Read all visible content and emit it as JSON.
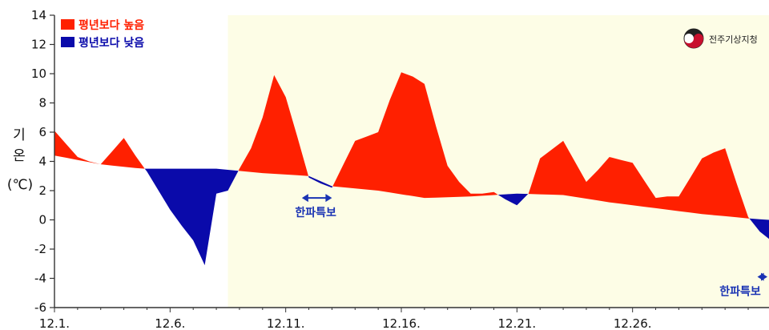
{
  "chart_data": {
    "type": "area",
    "title": "",
    "xlabel": "",
    "ylabel_lines": [
      "기",
      "온",
      "(℃)"
    ],
    "ylim": [
      -6,
      14
    ],
    "yticks": [
      -6,
      -4,
      -2,
      0,
      2,
      4,
      6,
      8,
      10,
      12,
      14
    ],
    "x_start_day": 1,
    "x_end_day": 31.9,
    "xticks": [
      {
        "day": 1,
        "label": "12.1."
      },
      {
        "day": 6,
        "label": "12.6."
      },
      {
        "day": 11,
        "label": "12.11."
      },
      {
        "day": 16,
        "label": "12.16."
      },
      {
        "day": 21,
        "label": "12.21."
      },
      {
        "day": 26,
        "label": "12.26."
      }
    ],
    "highlight_from_day": 8.5,
    "legend": [
      {
        "label": "평년보다 높음",
        "color": "#ff2000"
      },
      {
        "label": "평년보다 낮음",
        "color": "#0a0aaa"
      }
    ],
    "legend_position": "top-left",
    "colors": {
      "above": "#ff2000",
      "below": "#0a0aaa",
      "highlight_bg": "#fdfde6",
      "axis": "#333333",
      "annotation": "#1a33b3"
    },
    "series": [
      {
        "name": "평년보다 높음",
        "role": "observed",
        "x": [
          1,
          1.5,
          2,
          2.5,
          3,
          3.5,
          4,
          4.5,
          5,
          5.5,
          6,
          6.5,
          7,
          7.5,
          8,
          8.5,
          9,
          9.5,
          10,
          10.5,
          11,
          11.5,
          12,
          12.5,
          13,
          13.5,
          14,
          14.5,
          15,
          15.5,
          16,
          16.5,
          17,
          17.5,
          18,
          18.5,
          19,
          19.5,
          20,
          20.5,
          21,
          21.5,
          22,
          22.5,
          23,
          23.5,
          24,
          24.5,
          25,
          25.5,
          26,
          26.5,
          27,
          27.5,
          28,
          28.5,
          29,
          29.5,
          30,
          30.5,
          31,
          31.5,
          31.9
        ],
        "values": [
          6.1,
          5.2,
          4.3,
          4.0,
          3.8,
          4.7,
          5.6,
          4.4,
          3.3,
          2.0,
          0.7,
          -0.4,
          -1.4,
          -3.1,
          1.8,
          2.0,
          3.5,
          4.9,
          7.0,
          9.9,
          8.4,
          5.7,
          2.9,
          2.5,
          2.2,
          3.8,
          5.4,
          5.7,
          6.0,
          8.2,
          10.1,
          9.8,
          9.3,
          6.4,
          3.7,
          2.6,
          1.8,
          1.8,
          1.9,
          1.4,
          1.0,
          1.8,
          4.2,
          4.8,
          5.4,
          4.0,
          2.6,
          3.4,
          4.3,
          4.1,
          3.9,
          2.7,
          1.5,
          1.6,
          1.6,
          2.9,
          4.2,
          4.6,
          4.9,
          2.5,
          0.2,
          -0.8,
          -1.3
        ]
      },
      {
        "name": "평년",
        "role": "normal",
        "x": [
          1,
          3,
          4.8,
          8,
          10,
          12,
          13,
          15,
          17,
          19,
          21,
          23,
          25,
          27,
          29,
          31,
          31.9
        ],
        "values": [
          4.4,
          3.8,
          3.5,
          3.5,
          3.2,
          3.0,
          2.3,
          2.0,
          1.5,
          1.6,
          1.8,
          1.7,
          1.2,
          0.8,
          0.4,
          0.1,
          0.0
        ]
      }
    ],
    "annotations": [
      {
        "text": "한파특보",
        "from_day": 11.7,
        "to_day": 13.0,
        "anchor_day": 12.3,
        "value": 1.5
      },
      {
        "text": "한파특보",
        "from_day": 31.4,
        "to_day": 32.0,
        "anchor_day": 31.6,
        "value": -3.9
      }
    ],
    "logo_text": "전주기상지청"
  }
}
